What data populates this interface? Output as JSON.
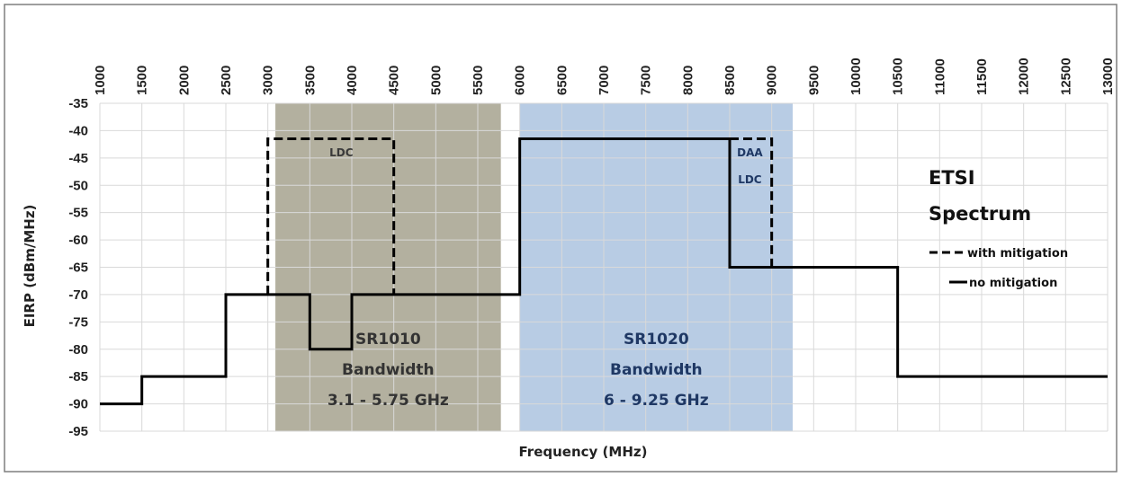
{
  "chart_data": {
    "type": "line",
    "xlabel": "Frequency (MHz)",
    "ylabel": "EIRP (dBm/MHz)",
    "ylim": [
      -95,
      -35
    ],
    "y_ticks": [
      -35,
      -40,
      -45,
      -50,
      -55,
      -60,
      -65,
      -70,
      -75,
      -80,
      -85,
      -90,
      -95
    ],
    "x_tick_labels": [
      "1000",
      "1500",
      "2000",
      "2500",
      "3000",
      "3500",
      "4000",
      "4500",
      "5000",
      "5500",
      "6000",
      "6500",
      "7000",
      "7500",
      "8000",
      "8500",
      "9000",
      "9500",
      "10000",
      "10500",
      "11000",
      "11500",
      "12000",
      "12500",
      "13000"
    ],
    "grid": true,
    "series": [
      {
        "name": "no mitigation",
        "style": "solid",
        "color": "#000000",
        "points": [
          [
            "1000",
            -90
          ],
          [
            "1500",
            -90
          ],
          [
            "1500",
            -85
          ],
          [
            "2500",
            -85
          ],
          [
            "2500",
            -70
          ],
          [
            "3500",
            -70
          ],
          [
            "3500",
            -80
          ],
          [
            "4000",
            -80
          ],
          [
            "4000",
            -70
          ],
          [
            "6000",
            -70
          ],
          [
            "6000",
            -41.5
          ],
          [
            "8500",
            -41.5
          ],
          [
            "8500",
            -65
          ],
          [
            "10500",
            -65
          ],
          [
            "10500",
            -85
          ],
          [
            "13000",
            -85
          ]
        ]
      },
      {
        "name": "with mitigation",
        "style": "dashed",
        "color": "#000000",
        "points": [
          [
            "3000",
            -70
          ],
          [
            "3000",
            -41.5
          ],
          [
            "4500",
            -41.5
          ],
          [
            "4500",
            -70
          ]
        ]
      },
      {
        "name": "with mitigation",
        "style": "dashed",
        "color": "#000000",
        "points": [
          [
            "8500",
            -41.5
          ],
          [
            "9000",
            -41.5
          ],
          [
            "9000",
            -65
          ]
        ]
      }
    ],
    "bands": [
      {
        "name": "SR1010",
        "from": "3000",
        "to": "5500",
        "color": "#b3b09f",
        "text_color": "#333333",
        "lines": [
          "SR1010",
          "Bandwidth",
          "3.1 - 5.75 GHz"
        ]
      },
      {
        "name": "SR1020",
        "from": "6000",
        "to": "9000",
        "color": "#b8cce4",
        "text_color": "#1f3864",
        "lines": [
          "SR1020",
          "Bandwidth",
          "6 - 9.25 GHz"
        ]
      }
    ],
    "annotations": [
      {
        "text": "LDC",
        "color": "#3a3a3a",
        "x": "3500",
        "y": -44
      },
      {
        "text": "DAA",
        "color": "#1f3864",
        "x": "8500",
        "y": -44
      },
      {
        "text": "LDC",
        "color": "#1f3864",
        "x": "8500",
        "y": -49
      }
    ],
    "legend": {
      "placement": "right",
      "title_lines": [
        "ETSI",
        "Spectrum"
      ],
      "items": [
        {
          "label": "with mitigation",
          "style": "dashed"
        },
        {
          "label": "no mitigation",
          "style": "solid"
        }
      ]
    }
  }
}
